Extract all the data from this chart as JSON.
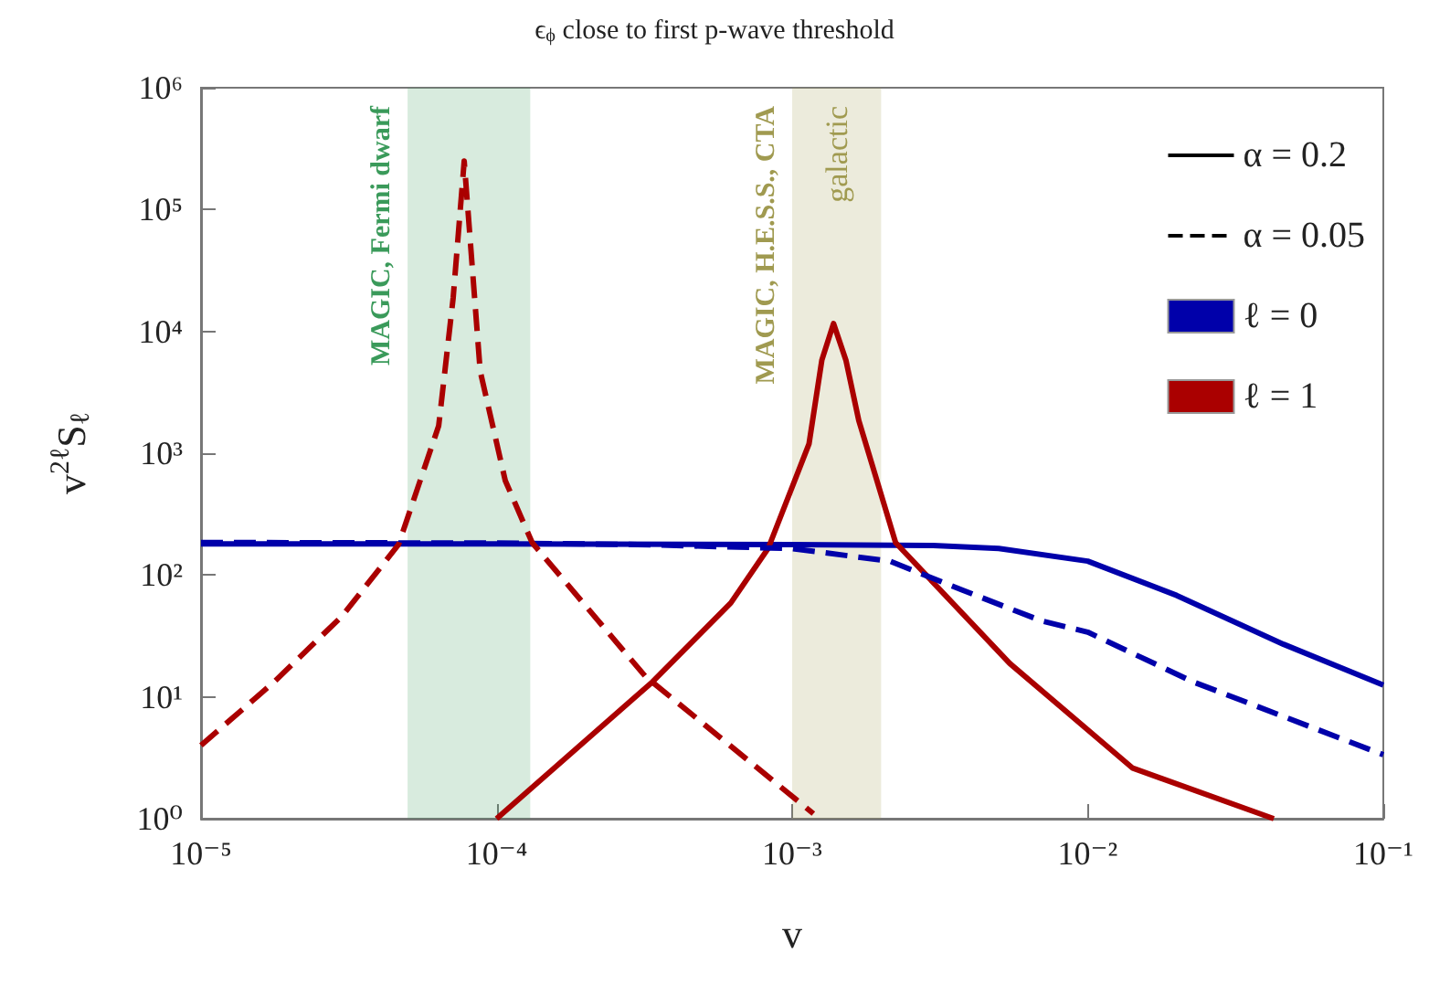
{
  "chart_data": {
    "type": "line",
    "title": "ϵ$_{ϕ}$ close to first p-wave threshold",
    "xlabel": "v",
    "ylabel": "v$^{2ℓ}$S$_{ℓ}$",
    "log": "xy",
    "grid": false,
    "legend": "top right",
    "marker": "none",
    "xlim": [
      1e-05,
      0.1
    ],
    "xticks": [
      {
        "value": 1e-05,
        "label": "10⁻⁵"
      },
      {
        "value": 0.0001,
        "label": "10⁻⁴"
      },
      {
        "value": 0.001,
        "label": "10⁻³"
      },
      {
        "value": 0.01,
        "label": "10⁻²"
      },
      {
        "value": 0.1,
        "label": "10⁻¹"
      }
    ],
    "ylim": [
      1,
      1000000
    ],
    "yticks": [
      {
        "value": 1,
        "label": "10⁰"
      },
      {
        "value": 10,
        "label": "10¹"
      },
      {
        "value": 100,
        "label": "10²"
      },
      {
        "value": 1000,
        "label": "10³"
      },
      {
        "value": 10000,
        "label": "10⁴"
      },
      {
        "value": 100000,
        "label": "10⁵"
      },
      {
        "value": 1000000,
        "label": "10⁶"
      }
    ],
    "bands": [
      {
        "axis": "x",
        "from": 5e-05,
        "to": 0.00013,
        "label": null,
        "color": "#3a9a5a"
      },
      {
        "axis": "x",
        "from": 0.001,
        "to": 0.002,
        "label": "galactic",
        "color": "#a09a50"
      }
    ],
    "annotations": [
      "MAGIC, Fermi dwarf",
      "MAGIC, H.E.S.S., CTA"
    ],
    "series": [
      {
        "name": "α = 0.2",
        "color": "#000000",
        "line_style": "solid"
      },
      {
        "name": "α = 0.05",
        "color": "#000000",
        "line_style": "dashed"
      },
      {
        "name": "ℓ = 0",
        "color": "#0000aa",
        "line_style": "solid",
        "x": [
          1e-05,
          0.0001,
          0.001,
          0.003,
          0.005,
          0.01,
          0.02,
          0.046,
          0.1
        ],
        "values": [
          180,
          180,
          178,
          175,
          165,
          130,
          68,
          27,
          12.5
        ]
      },
      {
        "name": "ℓ = 1",
        "color": "#aa0000",
        "line_style": "solid",
        "x": [
          0.0001,
          0.000337,
          0.00062,
          0.00083,
          0.00114,
          0.00126,
          0.00138,
          0.00152,
          0.00168,
          0.00224,
          0.00545,
          0.0142,
          0.0426
        ],
        "values": [
          1,
          13.3,
          59,
          166,
          1190,
          5800,
          11600,
          5800,
          1860,
          184,
          18.8,
          2.6,
          1
        ]
      },
      {
        "color": "#0000aa",
        "line_style": "dashed",
        "x": [
          1e-05,
          0.0001,
          0.0003,
          0.001,
          0.00214,
          0.00378,
          0.00698,
          0.01,
          0.0227,
          0.1
        ],
        "values": [
          185,
          183,
          178,
          165,
          130,
          75,
          42,
          34,
          13.3,
          3.35
        ]
      },
      {
        "color": "#aa0000",
        "line_style": "dashed",
        "x": [
          1e-05,
          1.77e-05,
          3e-05,
          4.66e-05,
          6.37e-05,
          7.13e-05,
          7.77e-05,
          8.8e-05,
          0.000107,
          0.000132,
          0.000318,
          0.00118
        ],
        "values": [
          4,
          13.3,
          46,
          178,
          1680,
          18800,
          250000,
          4730,
          596,
          184,
          14.8,
          1.1
        ]
      }
    ]
  }
}
